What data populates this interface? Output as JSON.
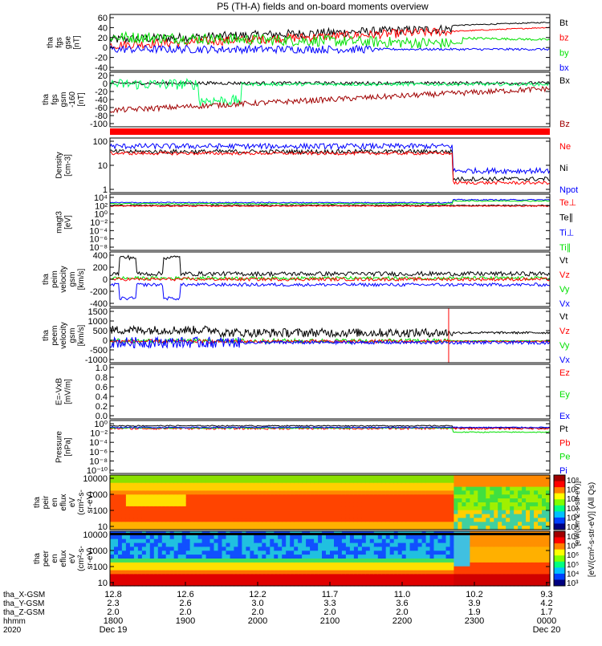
{
  "title": "P5 (TH-A) fields and on-board moments overview",
  "colors": {
    "black": "#000000",
    "red": "#ff0000",
    "green": "#00e000",
    "blue": "#0000ff",
    "darkred": "#a00000",
    "brightgreen": "#00ff60"
  },
  "chart_data": [
    {
      "type": "line",
      "panel": "fgs",
      "ylabel_lines": [
        "tha",
        "fgs",
        "gse",
        "[nT]"
      ],
      "yticks": [
        "60",
        "40",
        "20",
        "0",
        "-20",
        "-40"
      ],
      "ylim": [
        -40,
        65
      ],
      "legend": [
        {
          "name": "Bt",
          "color": "black"
        },
        {
          "name": "bz",
          "color": "red"
        },
        {
          "name": "by",
          "color": "green"
        },
        {
          "name": "bx",
          "color": "blue"
        }
      ]
    },
    {
      "type": "line",
      "panel": "fgs_gsm",
      "ylabel_lines": [
        "tha",
        "fgs",
        "gsm",
        "-160",
        "[nT]"
      ],
      "yticks": [
        "20",
        "0",
        "-20",
        "-40",
        "-60",
        "-80",
        "-100"
      ],
      "ylim": [
        -110,
        25
      ],
      "legend": [
        {
          "name": "Bx",
          "color": "black"
        },
        {
          "name": "Bz",
          "color": "darkred"
        }
      ]
    },
    {
      "type": "line",
      "panel": "density",
      "scale": "log",
      "ylabel_lines": [
        "Density",
        "[cm-3]"
      ],
      "yticks": [
        "100",
        "10",
        "1"
      ],
      "ylim": [
        0.4,
        200
      ],
      "legend": [
        {
          "name": "Ne",
          "color": "red"
        },
        {
          "name": "Ni",
          "color": "black"
        },
        {
          "name": "Npot",
          "color": "blue"
        }
      ]
    },
    {
      "type": "line",
      "panel": "temperature",
      "scale": "log",
      "ylabel_lines": [
        "magt3",
        "[eV]"
      ],
      "yticks": [
        "10⁴",
        "10²",
        "10⁰",
        "10⁻²",
        "10⁻⁴",
        "10⁻⁶",
        "10⁻⁸"
      ],
      "ylim": [
        1e-09,
        100000.0
      ],
      "legend": [
        {
          "name": "Te⊥",
          "color": "red"
        },
        {
          "name": "Te∥",
          "color": "black"
        },
        {
          "name": "Ti⊥",
          "color": "blue"
        },
        {
          "name": "Ti∥",
          "color": "green"
        }
      ]
    },
    {
      "type": "line",
      "panel": "peim_velocity",
      "ylabel_lines": [
        "tha",
        "peim",
        "velocity",
        "gsm",
        "[km/s]"
      ],
      "yticks": [
        "400",
        "200",
        "0",
        "-200",
        "-400"
      ],
      "ylim": [
        -400,
        400
      ],
      "legend": [
        {
          "name": "Vt",
          "color": "black"
        },
        {
          "name": "Vz",
          "color": "red"
        },
        {
          "name": "Vy",
          "color": "green"
        },
        {
          "name": "Vx",
          "color": "blue"
        }
      ]
    },
    {
      "type": "line",
      "panel": "peem_velocity",
      "ylabel_lines": [
        "tha",
        "peem",
        "velocity",
        "gsm",
        "[km/s]"
      ],
      "yticks": [
        "1500",
        "1000",
        "500",
        "0",
        "-500",
        "-1000"
      ],
      "ylim": [
        -1000,
        1600
      ],
      "legend": [
        {
          "name": "Vt",
          "color": "black"
        },
        {
          "name": "Vz",
          "color": "red"
        },
        {
          "name": "Vy",
          "color": "green"
        },
        {
          "name": "Vx",
          "color": "blue"
        }
      ]
    },
    {
      "type": "line",
      "panel": "efield",
      "ylabel_lines": [
        "E=-VxB",
        "[mV/m]"
      ],
      "yticks": [
        "1.0",
        "0.8",
        "0.6",
        "0.4",
        "0.2",
        "0.0"
      ],
      "ylim": [
        0,
        1
      ],
      "legend": [
        {
          "name": "Ez",
          "color": "red"
        },
        {
          "name": "Ey",
          "color": "green"
        },
        {
          "name": "Ex",
          "color": "blue"
        }
      ]
    },
    {
      "type": "line",
      "panel": "pressure",
      "scale": "log",
      "ylabel_lines": [
        "Pressure",
        "[nPa]"
      ],
      "yticks": [
        "10⁰",
        "10⁻²",
        "10⁻⁴",
        "10⁻⁶",
        "10⁻⁸",
        "10⁻¹⁰"
      ],
      "ylim": [
        1e-10,
        10
      ],
      "legend": [
        {
          "name": "Pt",
          "color": "black"
        },
        {
          "name": "Pb",
          "color": "red"
        },
        {
          "name": "Pe",
          "color": "green"
        },
        {
          "name": "Pi",
          "color": "blue"
        }
      ]
    },
    {
      "type": "heatmap",
      "panel": "peir_spectrogram",
      "scale": "log",
      "ylabel_lines": [
        "tha",
        "peir",
        "en",
        "eflux",
        "eV",
        "(cm²-s-",
        "sr-eV)"
      ],
      "yticks": [
        "10000",
        "1000",
        "100",
        "10"
      ],
      "ylim": [
        5,
        25000
      ]
    },
    {
      "type": "heatmap",
      "panel": "peer_spectrogram",
      "scale": "log",
      "ylabel_lines": [
        "tha",
        "peer",
        "en",
        "eflux",
        "eV",
        "(cm²-s-",
        "sr-eV)"
      ],
      "yticks": [
        "10000",
        "1000",
        "100",
        "10"
      ],
      "ylim": [
        5,
        25000
      ]
    }
  ],
  "colorbar": {
    "label": "[eV/(cm²-s-str-eV)] (All Qs)",
    "overlay_label": "[eV/(cm^2-s-str-eV)]",
    "ticks_top": [
      "10⁸",
      "10⁷",
      "10⁶",
      "10⁵",
      "10⁴",
      "10³"
    ],
    "ticks_bottom": [
      "10⁸",
      "10⁷",
      "10⁶",
      "10⁵",
      "10⁴",
      "10³"
    ]
  },
  "xaxis": {
    "rows": [
      {
        "label": "tha_X-GSM",
        "values": [
          "12.8",
          "12.6",
          "12.2",
          "11.7",
          "11.0",
          "10.2",
          "9.3"
        ]
      },
      {
        "label": "tha_Y-GSM",
        "values": [
          "2.3",
          "2.6",
          "3.0",
          "3.3",
          "3.6",
          "3.9",
          "4.2"
        ]
      },
      {
        "label": "tha_Z-GSM",
        "values": [
          "2.0",
          "2.0",
          "2.0",
          "2.0",
          "2.0",
          "1.9",
          "1.7"
        ]
      },
      {
        "label": "hhmm",
        "values": [
          "1800",
          "1900",
          "2000",
          "2100",
          "2200",
          "2300",
          "0000"
        ]
      },
      {
        "label": "2020",
        "values": [
          "Dec 19",
          "",
          "",
          "",
          "",
          "",
          "Dec 20"
        ]
      }
    ]
  }
}
